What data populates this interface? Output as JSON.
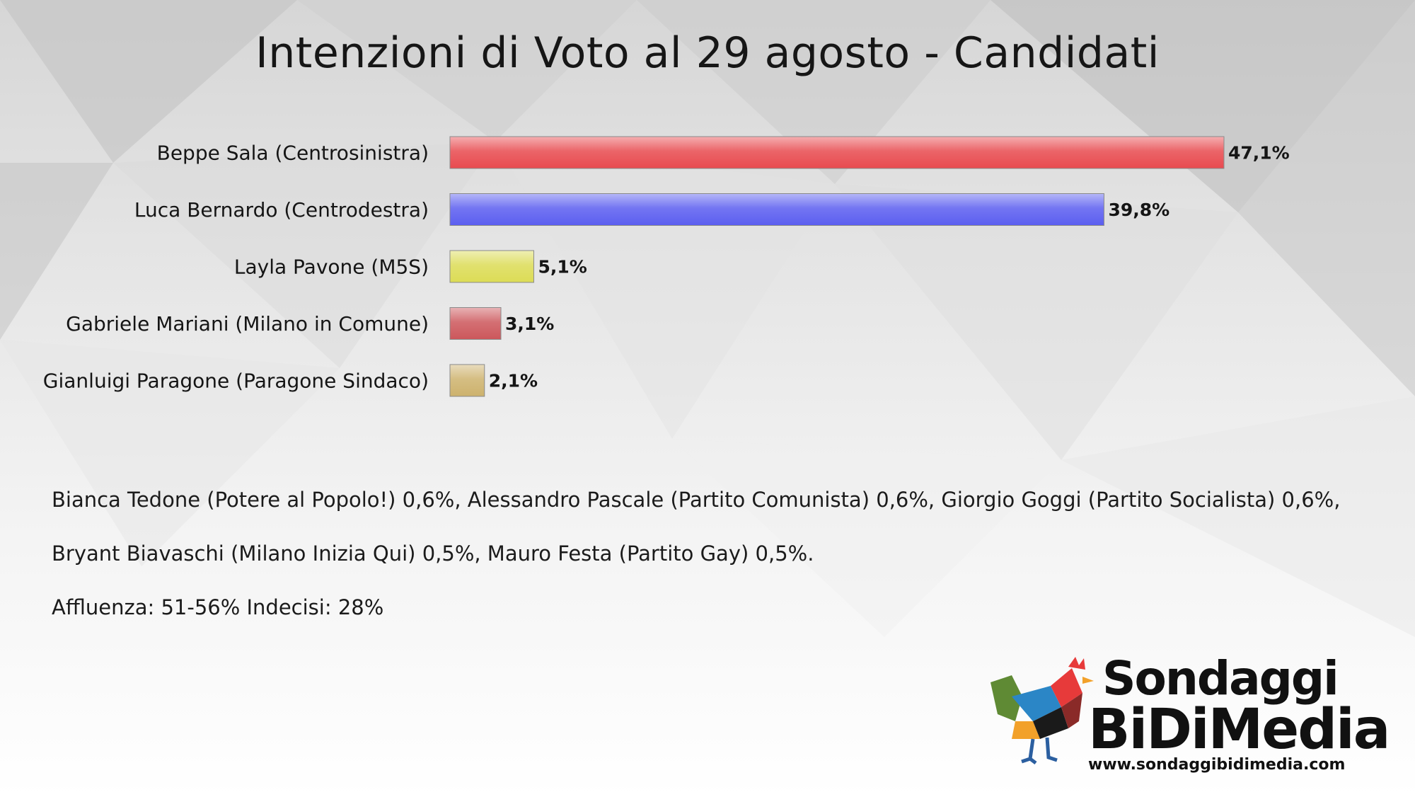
{
  "title": "Intenzioni di Voto al 29 agosto - Candidati",
  "chart_data": {
    "type": "bar",
    "orientation": "horizontal",
    "title": "Intenzioni di Voto al 29 agosto - Candidati",
    "categories": [
      "Beppe Sala (Centrosinistra)",
      "Luca Bernardo (Centrodestra)",
      "Layla Pavone (M5S)",
      "Gabriele Mariani (Milano in Comune)",
      "Gianluigi Paragone (Paragone Sindaco)"
    ],
    "values": [
      47.1,
      39.8,
      5.1,
      3.1,
      2.1
    ],
    "value_labels": [
      "47,1%",
      "39,8%",
      "5,1%",
      "3,1%",
      "2,1%"
    ],
    "colors": [
      "#e84a4f",
      "#5b5ef0",
      "#dcdc55",
      "#cc575b",
      "#cdb26d"
    ],
    "xlim": [
      0,
      50
    ],
    "grid": false,
    "legend": "none"
  },
  "notes": {
    "line1": "Bianca Tedone (Potere al Popolo!) 0,6%, Alessandro Pascale (Partito Comunista) 0,6%, Giorgio Goggi (Partito Socialista) 0,6%,",
    "line2": "Bryant Biavaschi (Milano Inizia Qui) 0,5%, Mauro Festa (Partito Gay) 0,5%.",
    "line3": "Affluenza: 51-56% Indecisi: 28%"
  },
  "logo": {
    "line1": "Sondaggi",
    "line2": "BiDiMedia",
    "url": "www.sondaggibidimedia.com",
    "icon": "rooster-icon"
  }
}
